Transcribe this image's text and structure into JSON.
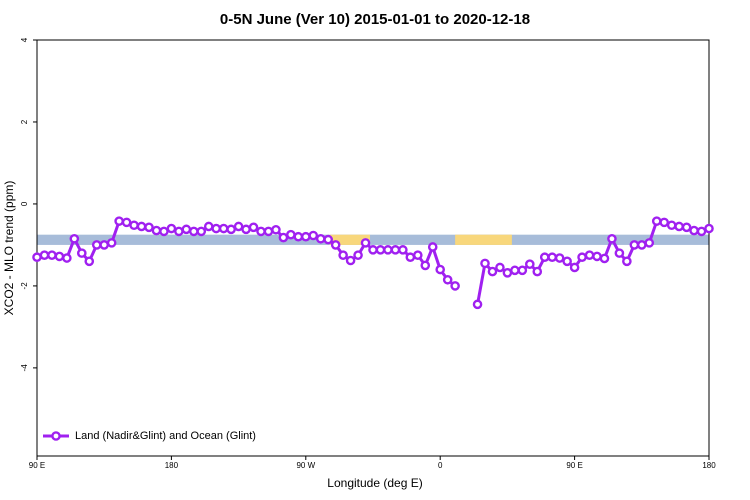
{
  "chart_data": {
    "type": "line",
    "title": "0-5N June (Ver 10)   2015-01-01 to 2020-12-18",
    "xlabel": "Longitude (deg E)",
    "ylabel": "XCO2 - MLO trend (ppm)",
    "xlim": [
      90,
      540
    ],
    "ylim": [
      -6.15,
      4
    ],
    "xticks": [
      {
        "value": 90,
        "label": "90 E"
      },
      {
        "value": 180,
        "label": "180"
      },
      {
        "value": 270,
        "label": "90 W"
      },
      {
        "value": 360,
        "label": "0"
      },
      {
        "value": 450,
        "label": "90 E"
      },
      {
        "value": 540,
        "label": "180"
      }
    ],
    "yticks": [
      -4,
      -2,
      0,
      2,
      4
    ],
    "band": [
      -1,
      -0.75
    ],
    "band_color": "#a7bcd9",
    "band_highlights": [
      [
        286,
        313
      ],
      [
        370,
        408
      ]
    ],
    "highlight_color": "#f8d77c",
    "legend": "bottom-left",
    "x": [
      90,
      95,
      100,
      105,
      110,
      115,
      120,
      125,
      130,
      135,
      140,
      145,
      150,
      155,
      160,
      165,
      170,
      175,
      180,
      185,
      190,
      195,
      200,
      205,
      210,
      215,
      220,
      225,
      230,
      235,
      240,
      245,
      250,
      255,
      260,
      265,
      270,
      275,
      280,
      285,
      290,
      295,
      300,
      305,
      310,
      315,
      320,
      325,
      330,
      335,
      340,
      345,
      350,
      355,
      360,
      365,
      370,
      375,
      380,
      385,
      390,
      395,
      400,
      405,
      410,
      415,
      420,
      425,
      430,
      435,
      440,
      445,
      450,
      455,
      460,
      465,
      470,
      475,
      480,
      485,
      490,
      495,
      500,
      505,
      510,
      515,
      520,
      525,
      530,
      535,
      540
    ],
    "series": [
      {
        "name": "Land (Nadir&Glint) and Ocean (Glint)",
        "color": "#a020f0",
        "values": [
          -1.3,
          -1.25,
          -1.25,
          -1.28,
          -1.32,
          -0.85,
          -1.2,
          -1.4,
          -1.0,
          -1.0,
          -0.95,
          -0.42,
          -0.45,
          -0.52,
          -0.55,
          -0.57,
          -0.65,
          -0.67,
          -0.6,
          -0.67,
          -0.62,
          -0.67,
          -0.67,
          -0.55,
          -0.6,
          -0.6,
          -0.62,
          -0.55,
          -0.62,
          -0.57,
          -0.67,
          -0.67,
          -0.63,
          -0.82,
          -0.75,
          -0.8,
          -0.8,
          -0.77,
          -0.85,
          -0.87,
          -1.0,
          -1.25,
          -1.38,
          -1.25,
          -0.95,
          -1.12,
          -1.12,
          -1.12,
          -1.12,
          -1.12,
          -1.3,
          -1.25,
          -1.5,
          -1.05,
          -1.6,
          -1.85,
          -2.0,
          null,
          null,
          -2.45,
          -1.45,
          -1.65,
          -1.55,
          -1.68,
          -1.62,
          -1.62,
          -1.47,
          -1.65,
          -1.3,
          -1.3,
          -1.32,
          -1.4,
          -1.55,
          -1.3,
          -1.25,
          -1.28,
          -1.33,
          -0.85,
          -1.2,
          -1.4,
          -1.0,
          -1.0,
          -0.95,
          -0.42,
          -0.45,
          -0.52,
          -0.55,
          -0.57,
          -0.65,
          -0.67,
          -0.6
        ]
      }
    ]
  }
}
